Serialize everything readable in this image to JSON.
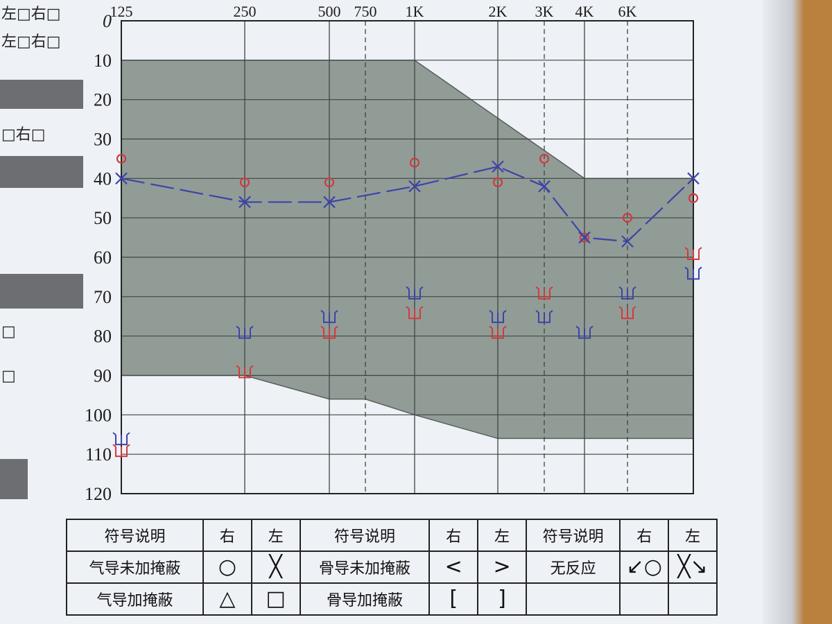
{
  "left_strip": {
    "line1": "左□右□",
    "line2": "左□右□",
    "line3": "□右□",
    "box1": "□",
    "box2": "□"
  },
  "chart_data": {
    "type": "scatter",
    "x_tick_labels": [
      "125",
      "250",
      "500",
      "750",
      "1K",
      "2K",
      "3K",
      "4K",
      "6K"
    ],
    "y_tick_labels": [
      "0",
      "10",
      "20",
      "30",
      "40",
      "50",
      "60",
      "70",
      "80",
      "90",
      "100",
      "110",
      "120"
    ],
    "x_freqs": [
      125,
      250,
      500,
      750,
      1000,
      2000,
      3000,
      4000,
      6000,
      8000
    ],
    "ylim": [
      0,
      120
    ],
    "y_inverted": true,
    "grid": true,
    "shaded_region": {
      "upper_edge": [
        [
          125,
          10
        ],
        [
          1000,
          10
        ],
        [
          4000,
          40
        ],
        [
          8000,
          40
        ]
      ],
      "lower_edge": [
        [
          125,
          90
        ],
        [
          250,
          90
        ],
        [
          500,
          96
        ],
        [
          750,
          96
        ],
        [
          1000,
          100
        ],
        [
          2000,
          106
        ],
        [
          8000,
          106
        ]
      ]
    },
    "series": [
      {
        "name": "右",
        "symbol": "circle",
        "color": "#d23a3a",
        "points": [
          [
            125,
            35
          ],
          [
            250,
            41
          ],
          [
            500,
            41
          ],
          [
            1000,
            36
          ],
          [
            2000,
            41
          ],
          [
            3000,
            35
          ],
          [
            4000,
            55
          ],
          [
            6000,
            50
          ],
          [
            8000,
            45
          ]
        ]
      },
      {
        "name": "左",
        "symbol": "cross",
        "color": "#3d43a8",
        "points": [
          [
            125,
            40
          ],
          [
            250,
            46
          ],
          [
            500,
            46
          ],
          [
            1000,
            42
          ],
          [
            2000,
            37
          ],
          [
            3000,
            42
          ],
          [
            4000,
            55
          ],
          [
            6000,
            56
          ],
          [
            8000,
            40
          ]
        ]
      },
      {
        "name": "无反应 右",
        "symbol": "no-response-mark",
        "color": "#d23a3a",
        "points": [
          [
            125,
            110
          ],
          [
            250,
            90
          ],
          [
            500,
            80
          ],
          [
            1000,
            75
          ],
          [
            2000,
            80
          ],
          [
            3000,
            70
          ],
          [
            6000,
            75
          ],
          [
            8000,
            60
          ]
        ]
      },
      {
        "name": "无反应 左",
        "symbol": "no-response-mark",
        "color": "#3d43a8",
        "points": [
          [
            125,
            107
          ],
          [
            250,
            80
          ],
          [
            500,
            76
          ],
          [
            1000,
            70
          ],
          [
            2000,
            76
          ],
          [
            3000,
            76
          ],
          [
            4000,
            80
          ],
          [
            6000,
            70
          ],
          [
            8000,
            65
          ]
        ]
      }
    ]
  },
  "legend": {
    "h_desc1": "符号说明",
    "h_right1": "右",
    "h_left1": "左",
    "h_desc2": "符号说明",
    "h_right2": "右",
    "h_left2": "左",
    "h_desc3": "符号说明",
    "h_right3": "右",
    "h_left3": "左",
    "r1_desc1": "气导未加掩蔽",
    "r1_right1": "○",
    "r1_left1": "╳",
    "r1_desc2": "骨导未加掩蔽",
    "r1_right2": "<",
    "r1_left2": ">",
    "r1_desc3": "无反应",
    "r1_right3": "↙○",
    "r1_left3": "╳↘",
    "r2_desc1": "气导加掩蔽",
    "r2_right1": "△",
    "r2_left1": "□",
    "r2_desc2": "骨导加掩蔽",
    "r2_right2": "[",
    "r2_left2": "]"
  }
}
